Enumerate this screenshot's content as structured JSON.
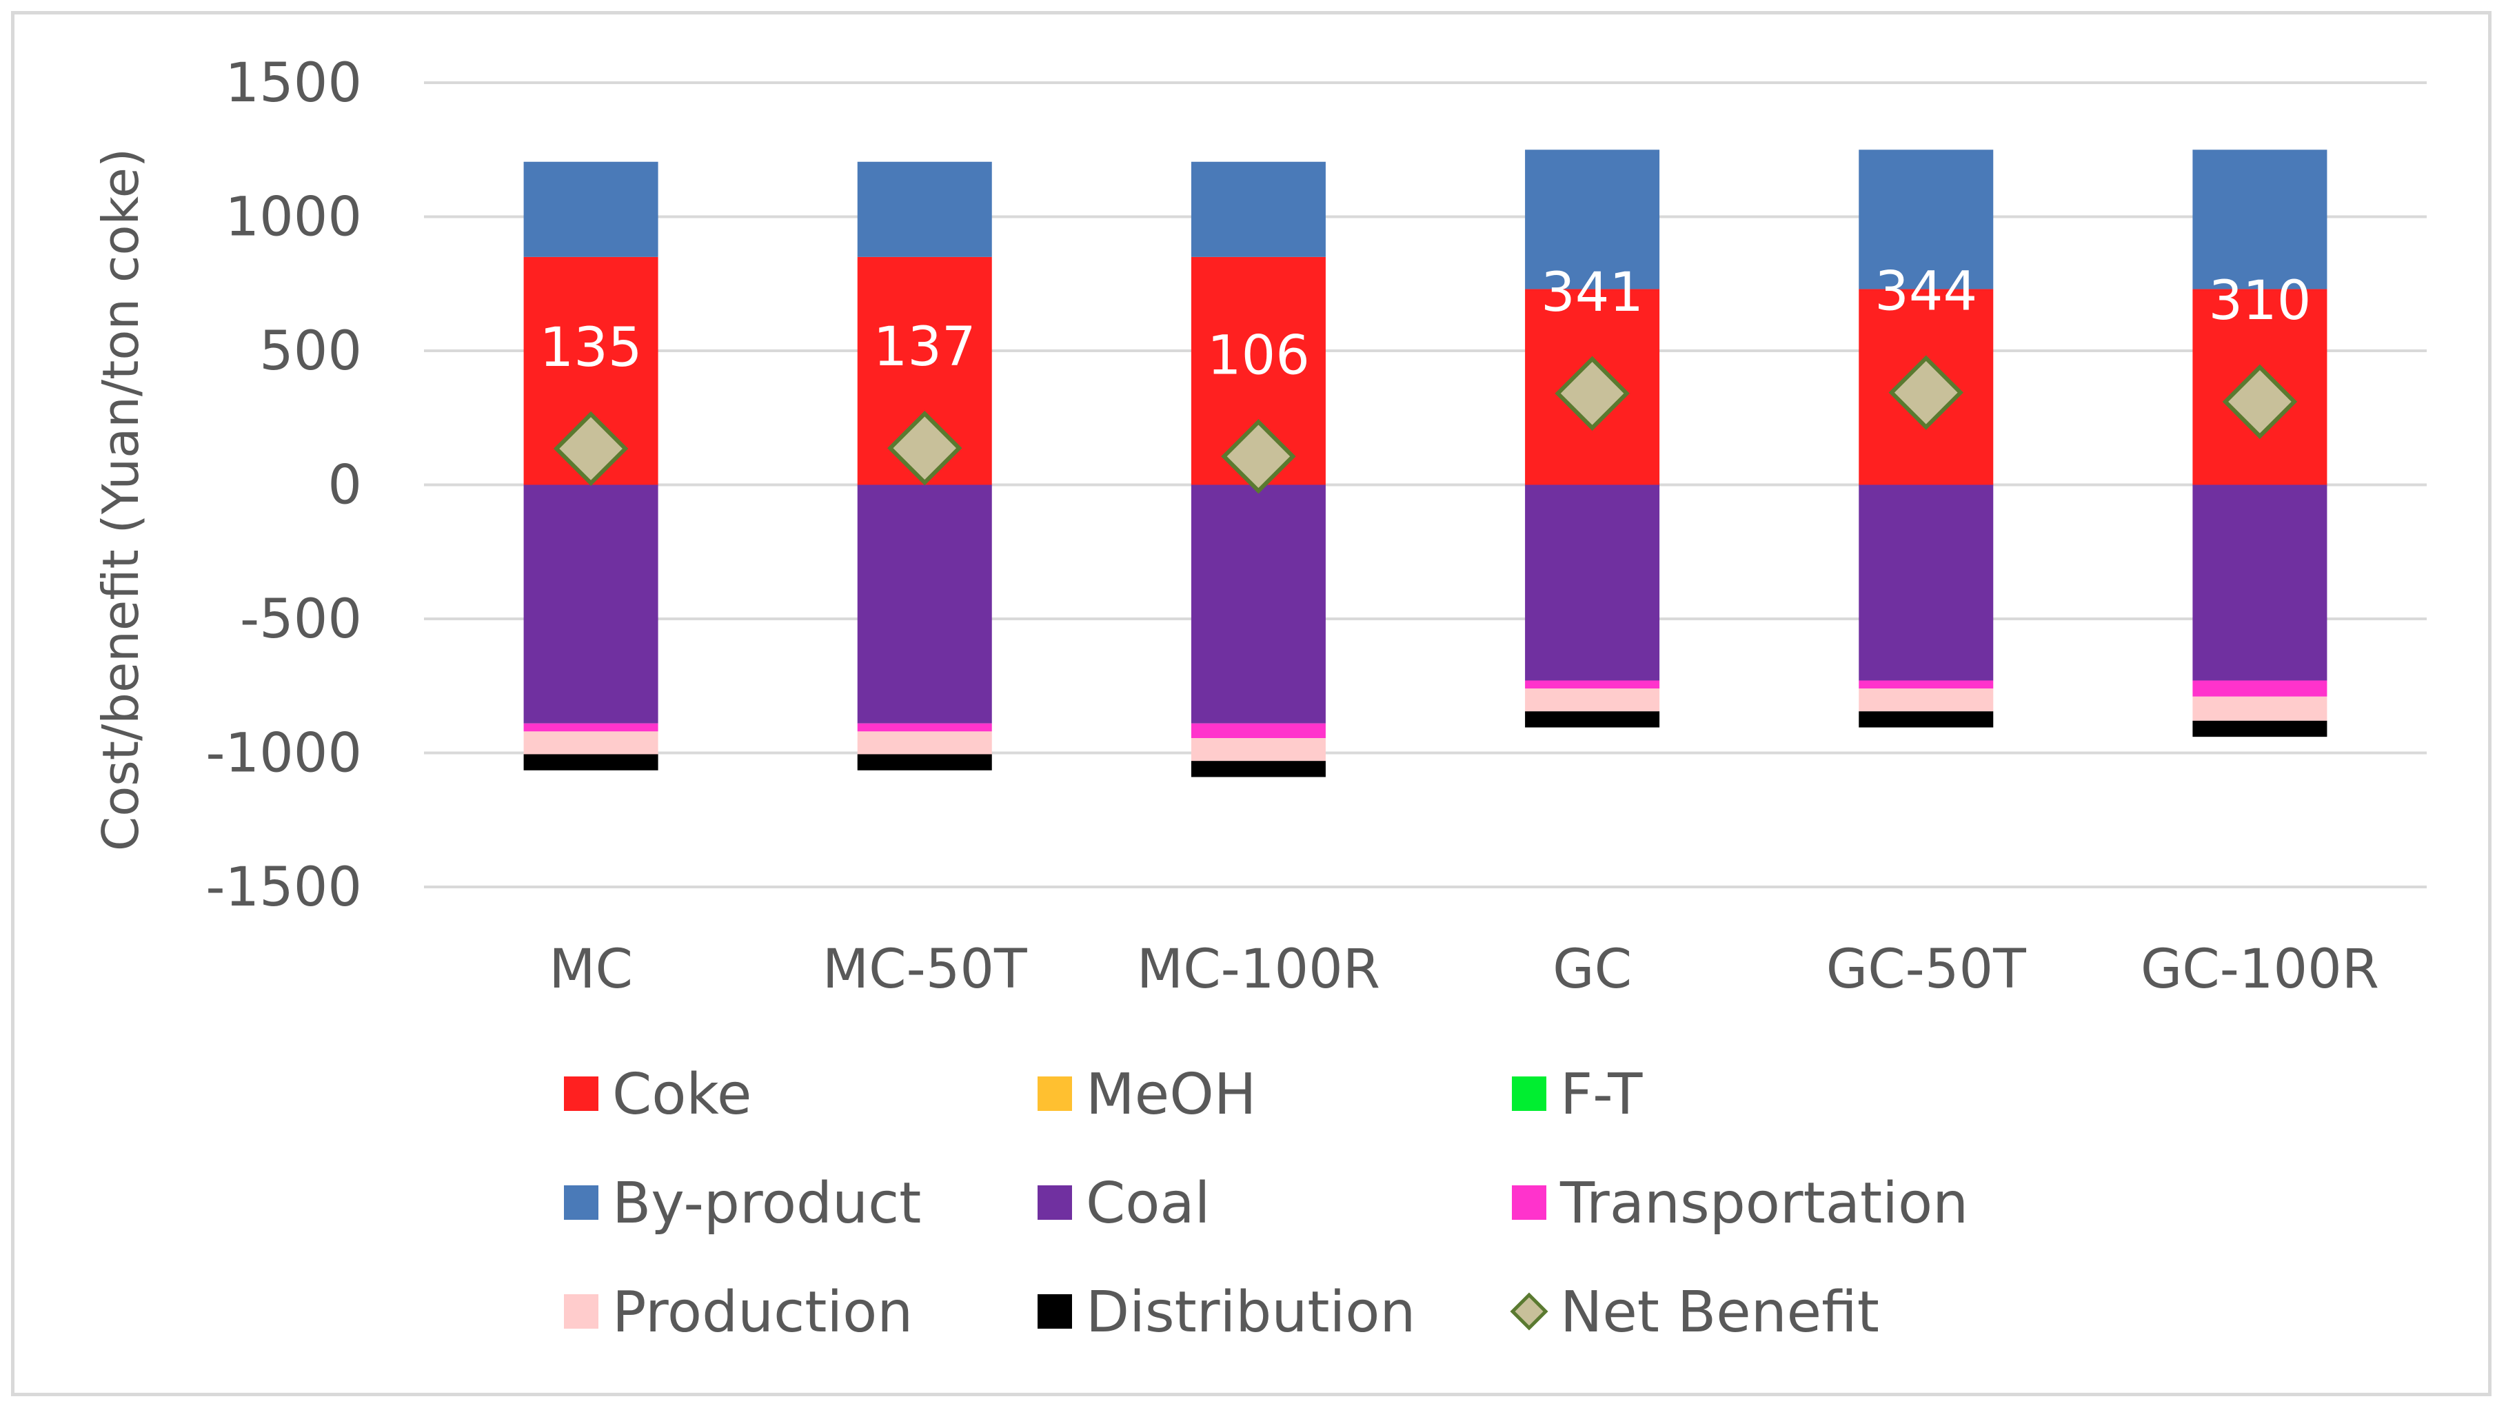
{
  "chart_data": {
    "type": "bar",
    "stacked": true,
    "title": "",
    "xlabel": "",
    "ylabel": "Cost/benefit (Yuan/ton coke)",
    "ylim": [
      -1500,
      1500
    ],
    "yticks": [
      1500,
      1000,
      500,
      0,
      -500,
      -1000,
      -1500
    ],
    "ytick_labels": [
      "1500",
      "1000",
      "500",
      "0",
      "-500",
      "-1000",
      "-1500"
    ],
    "categories": [
      "MC",
      "MC-50T",
      "MC-100R",
      "GC",
      "GC-50T",
      "GC-100R"
    ],
    "series": [
      {
        "name": "Coke",
        "color": "#ff2020",
        "values": [
          850,
          850,
          850,
          730,
          730,
          730
        ]
      },
      {
        "name": "MeOH",
        "color": "#ffc030",
        "values": [
          0,
          0,
          0,
          0,
          0,
          0
        ]
      },
      {
        "name": "F-T",
        "color": "#00ee30",
        "values": [
          0,
          0,
          0,
          0,
          0,
          0
        ]
      },
      {
        "name": "By-product",
        "color": "#4a7ab8",
        "values": [
          355,
          355,
          355,
          520,
          520,
          520
        ]
      },
      {
        "name": "Coal",
        "color": "#7030a0",
        "values": [
          -890,
          -890,
          -890,
          -730,
          -730,
          -730
        ]
      },
      {
        "name": "Transportation",
        "color": "#ff33cc",
        "values": [
          -30,
          -30,
          -55,
          -30,
          -30,
          -60
        ]
      },
      {
        "name": "Production",
        "color": "#ffcccc",
        "values": [
          -85,
          -85,
          -85,
          -85,
          -85,
          -90
        ]
      },
      {
        "name": "Distribution",
        "color": "#000000",
        "values": [
          -60,
          -60,
          -60,
          -60,
          -60,
          -60
        ]
      }
    ],
    "net_benefit": {
      "name": "Net Benefit",
      "values": [
        135,
        137,
        106,
        341,
        344,
        310
      ],
      "marker": "diamond",
      "fill": "#c8c09a",
      "stroke": "#5a7a30"
    },
    "data_labels": [
      "135",
      "137",
      "106",
      "341",
      "344",
      "310"
    ],
    "legend": {
      "position": "bottom",
      "entries": [
        "Coke",
        "MeOH",
        "F-T",
        "By-product",
        "Coal",
        "Transportation",
        "Production",
        "Distribution",
        "Net Benefit"
      ]
    },
    "colors": {
      "grid": "#d9d9d9",
      "text": "#595959",
      "border": "#d9d9d9"
    }
  }
}
